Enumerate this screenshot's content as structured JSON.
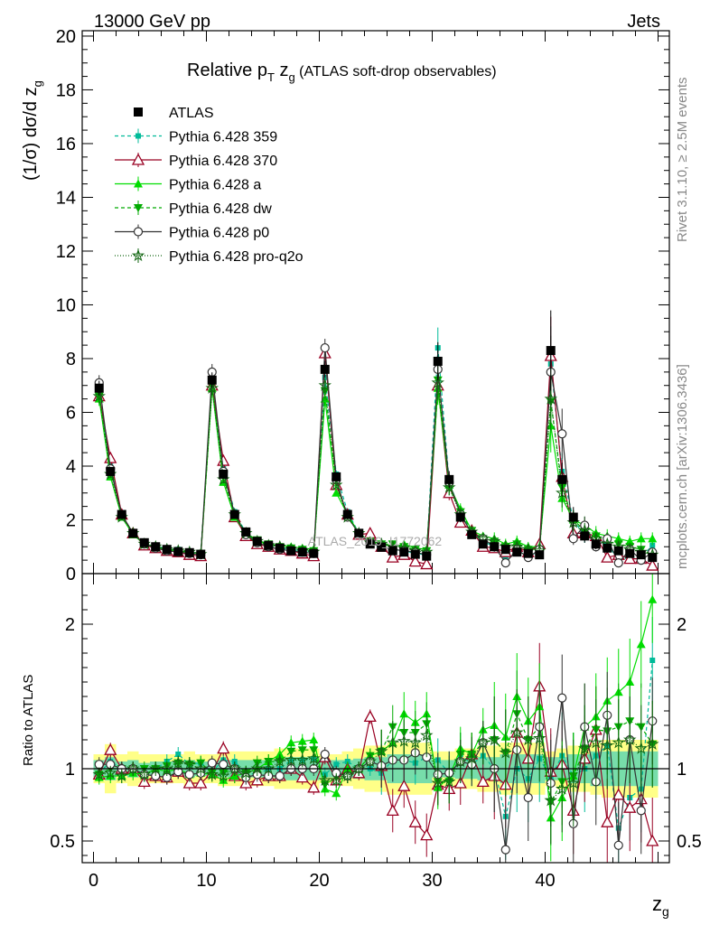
{
  "header": {
    "left": "13000 GeV pp",
    "right": "Jets"
  },
  "side": {
    "rivet": "Rivet 3.1.10, ≥ 2.5M events",
    "mcplots": "mcplots.cern.ch [arXiv:1306.3436]"
  },
  "plot_title": {
    "main": "Relative p",
    "sub_T": "T",
    "zg": " z",
    "sub_g": "g",
    "rest": " (ATLAS soft-drop observables)"
  },
  "watermark": "ATLAS_2019_I1772062",
  "chart_data": [
    {
      "type": "line",
      "panel": "main",
      "xlabel": "z_g",
      "ylabel": "(1/σ) dσ/d z_g",
      "xlim": [
        -1,
        51
      ],
      "ylim": [
        0,
        20.2
      ],
      "yticks": [
        0,
        2,
        4,
        6,
        8,
        10,
        12,
        14,
        16,
        18,
        20
      ],
      "x": [
        0.5,
        1.5,
        2.5,
        3.5,
        4.5,
        5.5,
        6.5,
        7.5,
        8.5,
        9.5,
        10.5,
        11.5,
        12.5,
        13.5,
        14.5,
        15.5,
        16.5,
        17.5,
        18.5,
        19.5,
        20.5,
        21.5,
        22.5,
        23.5,
        24.5,
        25.5,
        26.5,
        27.5,
        28.5,
        29.5,
        30.5,
        31.5,
        32.5,
        33.5,
        34.5,
        35.5,
        36.5,
        37.5,
        38.5,
        39.5,
        40.5,
        41.5,
        42.5,
        43.5,
        44.5,
        45.5,
        46.5,
        47.5,
        48.5,
        49.5
      ],
      "series": [
        {
          "name": "ATLAS",
          "color": "#000000",
          "marker": "square",
          "values": [
            6.9,
            3.8,
            2.2,
            1.5,
            1.15,
            1.0,
            0.9,
            0.82,
            0.78,
            0.72,
            7.2,
            3.7,
            2.2,
            1.55,
            1.2,
            1.05,
            0.95,
            0.85,
            0.8,
            0.75,
            7.6,
            3.6,
            2.2,
            1.5,
            1.1,
            0.98,
            0.85,
            0.8,
            0.72,
            0.65,
            7.9,
            3.5,
            2.1,
            1.45,
            1.1,
            1.0,
            0.9,
            0.8,
            0.75,
            0.7,
            8.3,
            3.5,
            2.1,
            1.4,
            1.1,
            0.95,
            0.85,
            0.75,
            0.7,
            0.6
          ]
        },
        {
          "name": "Pythia 6.428 359",
          "color": "#00bb99",
          "marker": "small-square",
          "dash": "4,3",
          "values": [
            6.7,
            4.0,
            2.2,
            1.5,
            1.1,
            1.0,
            0.95,
            0.9,
            0.8,
            0.75,
            7.1,
            3.9,
            2.3,
            1.5,
            1.15,
            1.05,
            0.95,
            0.9,
            0.85,
            0.8,
            7.3,
            3.7,
            2.3,
            1.5,
            1.1,
            0.95,
            0.9,
            0.85,
            0.75,
            0.7,
            8.4,
            3.4,
            2.3,
            1.5,
            1.2,
            1.0,
            0.6,
            0.8,
            0.7,
            0.75,
            7.8,
            3.8,
            2.0,
            1.4,
            1.2,
            1.1,
            0.5,
            0.6,
            0.6,
            1.05
          ]
        },
        {
          "name": "Pythia 6.428 370",
          "color": "#990022",
          "marker": "open-triangle",
          "values": [
            6.6,
            4.3,
            2.2,
            1.5,
            1.05,
            0.95,
            0.85,
            0.8,
            0.7,
            0.65,
            7.0,
            4.2,
            2.1,
            1.4,
            1.1,
            1.0,
            0.9,
            0.85,
            0.75,
            0.65,
            8.2,
            3.3,
            2.2,
            1.45,
            1.5,
            1.0,
            0.6,
            0.7,
            0.45,
            0.35,
            7.0,
            3.0,
            1.9,
            1.6,
            1.0,
            0.95,
            0.8,
            1.0,
            0.8,
            1.1,
            8.1,
            3.6,
            1.5,
            1.5,
            1.4,
            0.6,
            0.7,
            0.55,
            0.55,
            0.3
          ]
        },
        {
          "name": "Pythia 6.428 a",
          "color": "#00dd00",
          "marker": "filled-triangle",
          "values": [
            6.5,
            3.6,
            2.1,
            1.45,
            1.1,
            1.0,
            0.88,
            0.82,
            0.75,
            0.7,
            6.9,
            3.4,
            2.1,
            1.5,
            1.2,
            1.1,
            1.05,
            1.0,
            0.95,
            0.9,
            6.5,
            3.0,
            2.2,
            1.5,
            1.2,
            1.1,
            1.0,
            1.1,
            0.95,
            0.9,
            6.9,
            3.3,
            2.4,
            1.6,
            1.4,
            1.3,
            1.1,
            1.2,
            1.0,
            1.0,
            5.5,
            2.8,
            2.0,
            1.8,
            1.5,
            1.4,
            1.3,
            1.2,
            1.3,
            1.3
          ]
        },
        {
          "name": "Pythia 6.428 dw",
          "color": "#00aa00",
          "marker": "filled-inverted-triangle",
          "dash": "4,3",
          "values": [
            6.6,
            3.8,
            2.2,
            1.5,
            1.15,
            1.0,
            0.92,
            0.85,
            0.8,
            0.75,
            7.0,
            3.6,
            2.2,
            1.5,
            1.25,
            1.1,
            1.0,
            0.95,
            0.9,
            0.85,
            6.8,
            3.4,
            2.1,
            1.5,
            1.2,
            1.1,
            1.1,
            1.0,
            0.9,
            0.85,
            7.2,
            3.2,
            2.3,
            1.6,
            1.3,
            1.2,
            1.0,
            1.1,
            0.9,
            0.9,
            6.4,
            3.2,
            2.0,
            1.6,
            1.4,
            1.2,
            1.1,
            1.0,
            0.9,
            0.7
          ]
        },
        {
          "name": "Pythia 6.428 p0",
          "color": "#333333",
          "marker": "open-circle",
          "values": [
            7.1,
            3.9,
            2.2,
            1.5,
            1.1,
            0.95,
            0.85,
            0.8,
            0.75,
            0.7,
            7.5,
            3.8,
            2.2,
            1.45,
            1.15,
            1.0,
            0.9,
            0.85,
            0.8,
            0.75,
            8.4,
            3.5,
            2.1,
            1.5,
            1.15,
            1.0,
            0.9,
            0.85,
            0.8,
            0.7,
            7.6,
            3.4,
            2.2,
            1.5,
            1.3,
            1.0,
            0.4,
            0.9,
            0.6,
            0.9,
            7.5,
            5.2,
            1.3,
            1.8,
            1.0,
            1.3,
            0.4,
            0.9,
            0.5,
            0.8
          ]
        },
        {
          "name": "Pythia 6.428 pro-q2o",
          "color": "#116611",
          "marker": "star",
          "dash": "1,2",
          "values": [
            6.6,
            3.7,
            2.1,
            1.5,
            1.1,
            1.0,
            0.9,
            0.85,
            0.8,
            0.72,
            6.9,
            3.5,
            2.2,
            1.5,
            1.2,
            1.05,
            1.0,
            0.9,
            0.85,
            0.8,
            7.0,
            3.3,
            2.1,
            1.5,
            1.15,
            1.1,
            1.0,
            0.95,
            0.85,
            0.8,
            7.1,
            3.2,
            2.2,
            1.55,
            1.3,
            1.2,
            1.0,
            1.0,
            0.9,
            0.85,
            6.5,
            3.0,
            1.9,
            1.6,
            1.3,
            1.1,
            1.0,
            0.9,
            0.8,
            0.7
          ]
        }
      ]
    },
    {
      "type": "line",
      "panel": "ratio",
      "xlabel": "z_g",
      "ylabel": "Ratio to ATLAS",
      "xlim": [
        -1,
        51
      ],
      "ylim": [
        0.35,
        2.35
      ],
      "yticks": [
        0.5,
        1,
        2
      ],
      "xticks": [
        0,
        10,
        20,
        30,
        40
      ],
      "bands": {
        "inner_color": "#77ddaa",
        "outer_color": "#ffff88",
        "inner": [
          0.06,
          0.08,
          0.05,
          0.06,
          0.04,
          0.05,
          0.05,
          0.05,
          0.06,
          0.05,
          0.05,
          0.06,
          0.06,
          0.06,
          0.06,
          0.06,
          0.07,
          0.08,
          0.08,
          0.08,
          0.06,
          0.06,
          0.06,
          0.07,
          0.08,
          0.08,
          0.1,
          0.1,
          0.1,
          0.1,
          0.06,
          0.06,
          0.07,
          0.07,
          0.08,
          0.08,
          0.1,
          0.1,
          0.1,
          0.1,
          0.08,
          0.08,
          0.1,
          0.1,
          0.12,
          0.12,
          0.12,
          0.12,
          0.12,
          0.12
        ],
        "outer": [
          0.1,
          0.17,
          0.1,
          0.12,
          0.1,
          0.1,
          0.1,
          0.1,
          0.12,
          0.1,
          0.1,
          0.12,
          0.12,
          0.12,
          0.12,
          0.12,
          0.14,
          0.14,
          0.14,
          0.14,
          0.1,
          0.1,
          0.12,
          0.14,
          0.16,
          0.16,
          0.18,
          0.18,
          0.18,
          0.18,
          0.12,
          0.12,
          0.14,
          0.14,
          0.16,
          0.16,
          0.18,
          0.18,
          0.18,
          0.18,
          0.12,
          0.14,
          0.16,
          0.16,
          0.18,
          0.2,
          0.2,
          0.2,
          0.2,
          0.2
        ]
      },
      "series": [
        {
          "name": "Pythia 6.428 359",
          "color": "#00bb99",
          "values": [
            0.97,
            1.05,
            1.0,
            1.0,
            0.96,
            1.0,
            1.05,
            1.1,
            1.03,
            1.04,
            0.98,
            1.06,
            1.05,
            0.97,
            0.96,
            1.0,
            1.0,
            1.06,
            1.06,
            1.07,
            0.96,
            1.03,
            1.05,
            1.0,
            1.0,
            0.97,
            1.06,
            1.06,
            1.04,
            1.08,
            1.06,
            0.97,
            1.1,
            1.03,
            1.09,
            1.0,
            0.67,
            1.0,
            0.93,
            1.07,
            0.94,
            1.09,
            0.95,
            1.0,
            1.09,
            1.16,
            0.59,
            0.8,
            0.86,
            1.75
          ]
        },
        {
          "name": "Pythia 6.428 370",
          "color": "#990022",
          "values": [
            0.96,
            1.13,
            1.0,
            1.0,
            0.91,
            0.95,
            0.94,
            0.98,
            0.9,
            0.9,
            0.97,
            1.14,
            0.95,
            0.9,
            0.92,
            0.95,
            0.95,
            1.0,
            0.94,
            0.87,
            1.08,
            0.92,
            1.0,
            0.97,
            1.36,
            1.02,
            0.71,
            0.88,
            0.63,
            0.54,
            0.89,
            0.86,
            0.9,
            1.1,
            0.91,
            0.95,
            0.89,
            1.25,
            1.07,
            1.57,
            0.98,
            1.03,
            0.71,
            1.07,
            1.27,
            0.63,
            0.82,
            0.73,
            0.79,
            0.5
          ]
        },
        {
          "name": "Pythia 6.428 a",
          "color": "#00dd00",
          "values": [
            0.94,
            0.95,
            0.95,
            0.97,
            0.96,
            1.0,
            0.98,
            1.0,
            0.96,
            0.97,
            0.96,
            0.92,
            0.95,
            0.97,
            1.0,
            1.05,
            1.1,
            1.18,
            1.19,
            1.2,
            0.86,
            0.83,
            1.0,
            1.0,
            1.09,
            1.12,
            1.18,
            1.38,
            1.32,
            1.38,
            0.87,
            0.94,
            1.14,
            1.1,
            1.27,
            1.3,
            1.22,
            1.5,
            1.33,
            1.43,
            0.66,
            0.8,
            0.95,
            1.29,
            1.36,
            1.47,
            1.53,
            1.6,
            1.86,
            2.17
          ]
        },
        {
          "name": "Pythia 6.428 dw",
          "color": "#00aa00",
          "values": [
            0.96,
            1.0,
            1.0,
            1.0,
            1.0,
            1.0,
            1.02,
            1.04,
            1.03,
            1.04,
            0.97,
            0.97,
            1.0,
            0.97,
            1.04,
            1.05,
            1.05,
            1.12,
            1.13,
            1.13,
            0.89,
            0.94,
            0.95,
            1.0,
            1.09,
            1.12,
            1.29,
            1.25,
            1.25,
            1.31,
            0.91,
            0.91,
            1.1,
            1.1,
            1.18,
            1.2,
            1.11,
            1.38,
            1.2,
            1.29,
            0.77,
            0.91,
            0.95,
            1.14,
            1.27,
            1.26,
            1.29,
            1.33,
            1.29,
            1.17
          ]
        },
        {
          "name": "Pythia 6.428 p0",
          "color": "#333333",
          "values": [
            1.03,
            1.03,
            1.0,
            1.0,
            0.96,
            0.95,
            0.94,
            0.98,
            0.96,
            0.97,
            1.04,
            1.03,
            1.0,
            0.94,
            0.96,
            0.95,
            0.95,
            1.0,
            1.0,
            1.0,
            1.1,
            0.97,
            0.95,
            1.0,
            1.05,
            1.02,
            1.06,
            1.06,
            1.11,
            1.08,
            0.96,
            0.97,
            1.05,
            1.03,
            1.18,
            1.0,
            0.44,
            1.13,
            0.8,
            1.29,
            0.9,
            1.49,
            0.62,
            1.29,
            0.91,
            1.37,
            0.47,
            1.2,
            0.71,
            1.33
          ]
        },
        {
          "name": "Pythia 6.428 pro-q2o",
          "color": "#116611",
          "values": [
            0.96,
            0.97,
            0.95,
            1.0,
            0.96,
            1.0,
            1.0,
            1.04,
            1.03,
            1.0,
            0.96,
            0.95,
            1.0,
            0.97,
            1.0,
            1.0,
            1.05,
            1.06,
            1.06,
            1.07,
            0.92,
            0.92,
            0.95,
            1.0,
            1.05,
            1.12,
            1.18,
            1.19,
            1.18,
            1.23,
            0.9,
            0.91,
            1.05,
            1.07,
            1.18,
            1.2,
            1.11,
            1.25,
            1.2,
            1.21,
            0.78,
            0.86,
            0.9,
            1.14,
            1.18,
            1.16,
            1.18,
            1.2,
            1.14,
            1.17
          ]
        }
      ]
    }
  ]
}
